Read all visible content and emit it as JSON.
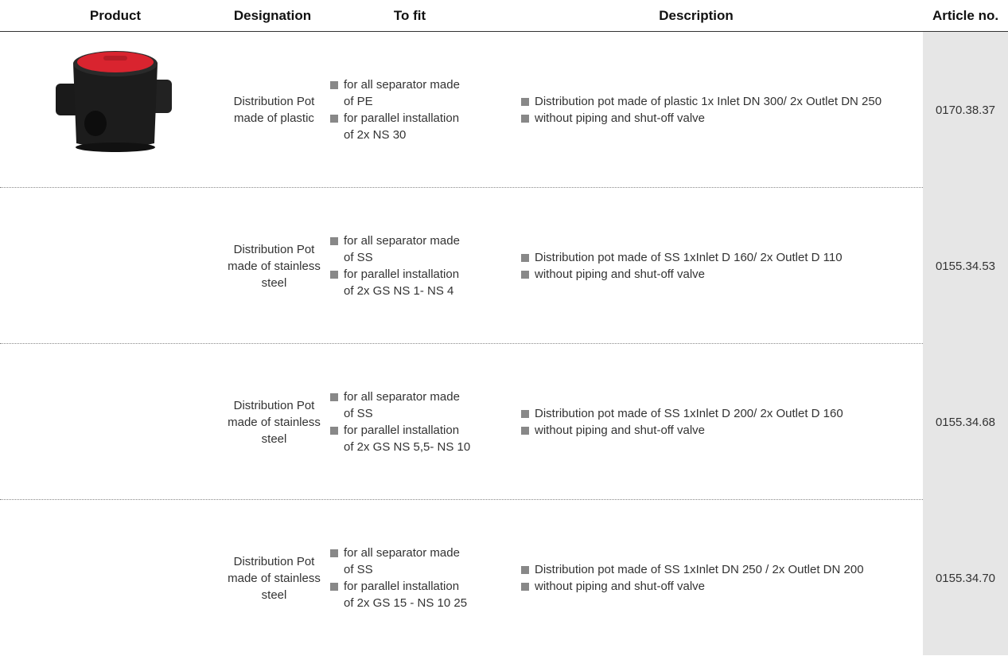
{
  "table": {
    "headers": [
      "Product",
      "Designation",
      "To fit",
      "Description",
      "Article no."
    ],
    "rows": [
      {
        "designation": "Distribution Pot made of plastic",
        "to_fit": [
          "for all separator made of PE",
          "for parallel installation of 2x NS 30"
        ],
        "description": [
          "Distribution pot made of plastic 1x Inlet DN 300/ 2x Outlet DN 250",
          "without piping and shut-off valve"
        ],
        "article": "0170.38.37"
      },
      {
        "designation": "Distribution Pot made of stainless steel",
        "to_fit": [
          "for all separator made of SS",
          "for parallel installation of 2x GS NS 1- NS 4"
        ],
        "description": [
          "Distribution pot made of SS 1xInlet D 160/ 2x Outlet D 110",
          "without piping and shut-off valve"
        ],
        "article": "0155.34.53"
      },
      {
        "designation": "Distribution Pot made of stainless steel",
        "to_fit": [
          "for all separator made of SS",
          "for parallel installation of 2x GS NS 5,5- NS 10"
        ],
        "description": [
          "Distribution pot made of SS 1xInlet D 200/ 2x Outlet D 160",
          "without piping and shut-off valve"
        ],
        "article": "0155.34.68"
      },
      {
        "designation": "Distribution Pot made of stainless steel",
        "to_fit": [
          "for all separator made of SS",
          "for parallel installation of 2x GS 15 - NS 10 25"
        ],
        "description": [
          "Distribution pot made of SS 1xInlet DN 250 / 2x Outlet DN 200",
          "without piping and shut-off valve"
        ],
        "article": "0155.34.70"
      }
    ]
  }
}
